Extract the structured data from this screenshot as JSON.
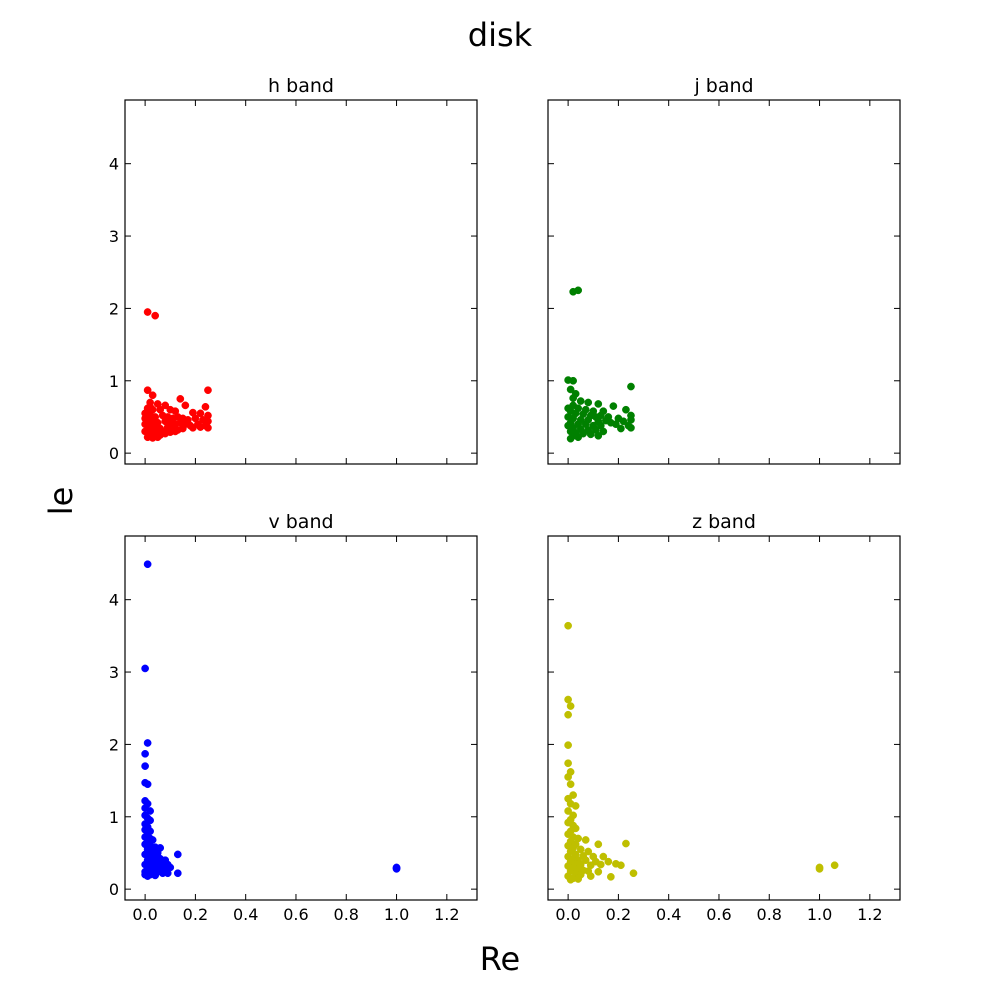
{
  "figure": {
    "title": "disk",
    "xlabel": "Re",
    "ylabel": "le"
  },
  "chart_data": [
    {
      "type": "scatter",
      "title": "h band",
      "color": "#ff0000",
      "xlim": [
        -0.08,
        1.32
      ],
      "ylim": [
        -0.15,
        4.88
      ],
      "xticks": [
        0.0,
        0.2,
        0.4,
        0.6,
        0.8,
        1.0,
        1.2
      ],
      "yticks": [
        0,
        1,
        2,
        3,
        4
      ],
      "xticklabels": [
        "0.0",
        "0.2",
        "0.4",
        "0.6",
        "0.8",
        "1.0",
        "1.2"
      ],
      "yticklabels": [
        "0",
        "1",
        "2",
        "3",
        "4"
      ],
      "show_xticklabels": false,
      "show_yticklabels": true,
      "points": [
        [
          0.01,
          1.95
        ],
        [
          0.04,
          1.9
        ],
        [
          0.25,
          0.87
        ],
        [
          0.01,
          0.87
        ],
        [
          0.03,
          0.8
        ],
        [
          0.14,
          0.75
        ],
        [
          0.02,
          0.7
        ],
        [
          0.05,
          0.68
        ],
        [
          0.08,
          0.66
        ],
        [
          0.16,
          0.66
        ],
        [
          0.24,
          0.64
        ],
        [
          0.01,
          0.62
        ],
        [
          0.03,
          0.6
        ],
        [
          0.06,
          0.6
        ],
        [
          0.1,
          0.6
        ],
        [
          0.12,
          0.58
        ],
        [
          0.19,
          0.56
        ],
        [
          0.22,
          0.55
        ],
        [
          0.25,
          0.52
        ],
        [
          0.0,
          0.55
        ],
        [
          0.02,
          0.52
        ],
        [
          0.04,
          0.5
        ],
        [
          0.07,
          0.52
        ],
        [
          0.09,
          0.5
        ],
        [
          0.11,
          0.48
        ],
        [
          0.13,
          0.5
        ],
        [
          0.15,
          0.48
        ],
        [
          0.17,
          0.46
        ],
        [
          0.2,
          0.48
        ],
        [
          0.23,
          0.46
        ],
        [
          0.25,
          0.44
        ],
        [
          0.01,
          0.46
        ],
        [
          0.03,
          0.44
        ],
        [
          0.05,
          0.42
        ],
        [
          0.08,
          0.44
        ],
        [
          0.1,
          0.42
        ],
        [
          0.12,
          0.4
        ],
        [
          0.14,
          0.42
        ],
        [
          0.16,
          0.4
        ],
        [
          0.18,
          0.38
        ],
        [
          0.21,
          0.4
        ],
        [
          0.24,
          0.38
        ],
        [
          0.25,
          0.35
        ],
        [
          0.02,
          0.38
        ],
        [
          0.04,
          0.36
        ],
        [
          0.06,
          0.34
        ],
        [
          0.09,
          0.36
        ],
        [
          0.11,
          0.34
        ],
        [
          0.13,
          0.32
        ],
        [
          0.15,
          0.34
        ],
        [
          0.19,
          0.35
        ],
        [
          0.22,
          0.36
        ],
        [
          0.01,
          0.32
        ],
        [
          0.03,
          0.3
        ],
        [
          0.05,
          0.28
        ],
        [
          0.07,
          0.3
        ],
        [
          0.1,
          0.29
        ],
        [
          0.12,
          0.3
        ],
        [
          0.02,
          0.26
        ],
        [
          0.04,
          0.24
        ],
        [
          0.06,
          0.25
        ],
        [
          0.08,
          0.27
        ],
        [
          0.01,
          0.22
        ],
        [
          0.03,
          0.21
        ],
        [
          0.05,
          0.22
        ],
        [
          0.0,
          0.4
        ],
        [
          0.0,
          0.48
        ],
        [
          0.01,
          0.58
        ],
        [
          0.02,
          0.64
        ],
        [
          0.0,
          0.3
        ]
      ]
    },
    {
      "type": "scatter",
      "title": "j band",
      "color": "#008000",
      "xlim": [
        -0.08,
        1.32
      ],
      "ylim": [
        -0.15,
        4.88
      ],
      "xticks": [
        0.0,
        0.2,
        0.4,
        0.6,
        0.8,
        1.0,
        1.2
      ],
      "yticks": [
        0,
        1,
        2,
        3,
        4
      ],
      "xticklabels": [
        "0.0",
        "0.2",
        "0.4",
        "0.6",
        "0.8",
        "1.0",
        "1.2"
      ],
      "yticklabels": [
        "0",
        "1",
        "2",
        "3",
        "4"
      ],
      "show_xticklabels": false,
      "show_yticklabels": false,
      "points": [
        [
          0.02,
          2.23
        ],
        [
          0.04,
          2.25
        ],
        [
          0.0,
          1.01
        ],
        [
          0.02,
          1.0
        ],
        [
          0.25,
          0.92
        ],
        [
          0.01,
          0.88
        ],
        [
          0.03,
          0.82
        ],
        [
          0.02,
          0.76
        ],
        [
          0.05,
          0.72
        ],
        [
          0.08,
          0.7
        ],
        [
          0.12,
          0.68
        ],
        [
          0.18,
          0.65
        ],
        [
          0.02,
          0.66
        ],
        [
          0.04,
          0.62
        ],
        [
          0.07,
          0.6
        ],
        [
          0.1,
          0.58
        ],
        [
          0.14,
          0.58
        ],
        [
          0.23,
          0.6
        ],
        [
          0.01,
          0.58
        ],
        [
          0.03,
          0.55
        ],
        [
          0.06,
          0.54
        ],
        [
          0.09,
          0.52
        ],
        [
          0.11,
          0.5
        ],
        [
          0.13,
          0.52
        ],
        [
          0.16,
          0.5
        ],
        [
          0.2,
          0.48
        ],
        [
          0.25,
          0.52
        ],
        [
          0.0,
          0.5
        ],
        [
          0.02,
          0.48
        ],
        [
          0.05,
          0.46
        ],
        [
          0.08,
          0.46
        ],
        [
          0.12,
          0.44
        ],
        [
          0.15,
          0.45
        ],
        [
          0.17,
          0.42
        ],
        [
          0.22,
          0.44
        ],
        [
          0.25,
          0.46
        ],
        [
          0.01,
          0.42
        ],
        [
          0.04,
          0.4
        ],
        [
          0.07,
          0.4
        ],
        [
          0.1,
          0.38
        ],
        [
          0.13,
          0.38
        ],
        [
          0.19,
          0.4
        ],
        [
          0.24,
          0.38
        ],
        [
          0.25,
          0.35
        ],
        [
          0.02,
          0.35
        ],
        [
          0.05,
          0.33
        ],
        [
          0.08,
          0.32
        ],
        [
          0.11,
          0.32
        ],
        [
          0.14,
          0.3
        ],
        [
          0.21,
          0.34
        ],
        [
          0.01,
          0.3
        ],
        [
          0.03,
          0.28
        ],
        [
          0.06,
          0.27
        ],
        [
          0.09,
          0.26
        ],
        [
          0.12,
          0.24
        ],
        [
          0.02,
          0.24
        ],
        [
          0.04,
          0.22
        ],
        [
          0.01,
          0.2
        ],
        [
          0.0,
          0.38
        ],
        [
          0.0,
          0.62
        ]
      ]
    },
    {
      "type": "scatter",
      "title": "v band",
      "color": "#0000ff",
      "xlim": [
        -0.08,
        1.32
      ],
      "ylim": [
        -0.15,
        4.88
      ],
      "xticks": [
        0.0,
        0.2,
        0.4,
        0.6,
        0.8,
        1.0,
        1.2
      ],
      "yticks": [
        0,
        1,
        2,
        3,
        4
      ],
      "xticklabels": [
        "0.0",
        "0.2",
        "0.4",
        "0.6",
        "0.8",
        "1.0",
        "1.2"
      ],
      "yticklabels": [
        "0",
        "1",
        "2",
        "3",
        "4"
      ],
      "show_xticklabels": true,
      "show_yticklabels": true,
      "points": [
        [
          0.01,
          4.49
        ],
        [
          0.0,
          3.05
        ],
        [
          0.01,
          2.02
        ],
        [
          0.0,
          1.87
        ],
        [
          0.0,
          1.7
        ],
        [
          0.0,
          1.47
        ],
        [
          0.01,
          1.45
        ],
        [
          0.0,
          1.22
        ],
        [
          0.01,
          1.18
        ],
        [
          0.0,
          1.12
        ],
        [
          0.02,
          1.08
        ],
        [
          0.0,
          1.02
        ],
        [
          0.01,
          0.98
        ],
        [
          0.02,
          0.95
        ],
        [
          0.0,
          0.9
        ],
        [
          0.01,
          0.86
        ],
        [
          0.0,
          0.82
        ],
        [
          0.02,
          0.8
        ],
        [
          0.01,
          0.76
        ],
        [
          0.0,
          0.72
        ],
        [
          0.02,
          0.7
        ],
        [
          0.03,
          0.68
        ],
        [
          0.01,
          0.65
        ],
        [
          0.0,
          0.62
        ],
        [
          0.02,
          0.6
        ],
        [
          0.04,
          0.58
        ],
        [
          0.06,
          0.57
        ],
        [
          0.01,
          0.55
        ],
        [
          0.03,
          0.52
        ],
        [
          0.05,
          0.5
        ],
        [
          0.0,
          0.48
        ],
        [
          0.02,
          0.46
        ],
        [
          0.04,
          0.44
        ],
        [
          0.06,
          0.42
        ],
        [
          0.08,
          0.4
        ],
        [
          0.13,
          0.48
        ],
        [
          0.01,
          0.4
        ],
        [
          0.03,
          0.38
        ],
        [
          0.05,
          0.36
        ],
        [
          0.07,
          0.35
        ],
        [
          0.09,
          0.34
        ],
        [
          0.0,
          0.34
        ],
        [
          0.02,
          0.32
        ],
        [
          0.04,
          0.3
        ],
        [
          0.06,
          0.3
        ],
        [
          0.08,
          0.28
        ],
        [
          0.1,
          0.3
        ],
        [
          0.01,
          0.28
        ],
        [
          0.03,
          0.26
        ],
        [
          0.05,
          0.24
        ],
        [
          0.07,
          0.22
        ],
        [
          0.09,
          0.22
        ],
        [
          0.13,
          0.22
        ],
        [
          0.0,
          0.24
        ],
        [
          0.02,
          0.2
        ],
        [
          0.04,
          0.19
        ],
        [
          0.01,
          0.18
        ],
        [
          0.0,
          0.2
        ],
        [
          1.0,
          0.29
        ],
        [
          1.0,
          0.28
        ],
        [
          1.0,
          0.3
        ]
      ]
    },
    {
      "type": "scatter",
      "title": "z band",
      "color": "#bfbf00",
      "xlim": [
        -0.08,
        1.32
      ],
      "ylim": [
        -0.15,
        4.88
      ],
      "xticks": [
        0.0,
        0.2,
        0.4,
        0.6,
        0.8,
        1.0,
        1.2
      ],
      "yticks": [
        0,
        1,
        2,
        3,
        4
      ],
      "xticklabels": [
        "0.0",
        "0.2",
        "0.4",
        "0.6",
        "0.8",
        "1.0",
        "1.2"
      ],
      "yticklabels": [
        "0",
        "1",
        "2",
        "3",
        "4"
      ],
      "show_xticklabels": true,
      "show_yticklabels": false,
      "points": [
        [
          0.0,
          3.64
        ],
        [
          0.0,
          2.62
        ],
        [
          0.01,
          2.53
        ],
        [
          0.0,
          2.41
        ],
        [
          0.0,
          1.99
        ],
        [
          0.0,
          1.74
        ],
        [
          0.01,
          1.62
        ],
        [
          0.0,
          1.55
        ],
        [
          0.01,
          1.45
        ],
        [
          0.02,
          1.3
        ],
        [
          0.0,
          1.25
        ],
        [
          0.01,
          1.18
        ],
        [
          0.03,
          1.15
        ],
        [
          0.0,
          1.08
        ],
        [
          0.02,
          1.02
        ],
        [
          0.01,
          0.96
        ],
        [
          0.0,
          0.92
        ],
        [
          0.02,
          0.88
        ],
        [
          0.03,
          0.84
        ],
        [
          0.01,
          0.8
        ],
        [
          0.0,
          0.76
        ],
        [
          0.02,
          0.72
        ],
        [
          0.04,
          0.7
        ],
        [
          0.07,
          0.68
        ],
        [
          0.01,
          0.66
        ],
        [
          0.03,
          0.62
        ],
        [
          0.12,
          0.62
        ],
        [
          0.23,
          0.63
        ],
        [
          0.0,
          0.6
        ],
        [
          0.02,
          0.57
        ],
        [
          0.05,
          0.55
        ],
        [
          0.08,
          0.52
        ],
        [
          0.01,
          0.52
        ],
        [
          0.03,
          0.48
        ],
        [
          0.06,
          0.46
        ],
        [
          0.1,
          0.45
        ],
        [
          0.14,
          0.45
        ],
        [
          0.0,
          0.45
        ],
        [
          0.02,
          0.42
        ],
        [
          0.04,
          0.4
        ],
        [
          0.07,
          0.4
        ],
        [
          0.11,
          0.38
        ],
        [
          0.16,
          0.38
        ],
        [
          0.01,
          0.38
        ],
        [
          0.03,
          0.35
        ],
        [
          0.05,
          0.34
        ],
        [
          0.09,
          0.33
        ],
        [
          0.13,
          0.34
        ],
        [
          0.19,
          0.35
        ],
        [
          0.21,
          0.33
        ],
        [
          0.0,
          0.32
        ],
        [
          0.02,
          0.3
        ],
        [
          0.04,
          0.28
        ],
        [
          0.06,
          0.26
        ],
        [
          0.08,
          0.25
        ],
        [
          0.12,
          0.24
        ],
        [
          0.26,
          0.22
        ],
        [
          0.01,
          0.25
        ],
        [
          0.03,
          0.22
        ],
        [
          0.05,
          0.2
        ],
        [
          0.09,
          0.18
        ],
        [
          0.17,
          0.17
        ],
        [
          0.0,
          0.18
        ],
        [
          0.02,
          0.15
        ],
        [
          0.04,
          0.14
        ],
        [
          0.01,
          0.13
        ],
        [
          1.0,
          0.3
        ],
        [
          1.0,
          0.28
        ],
        [
          1.06,
          0.33
        ]
      ]
    }
  ]
}
